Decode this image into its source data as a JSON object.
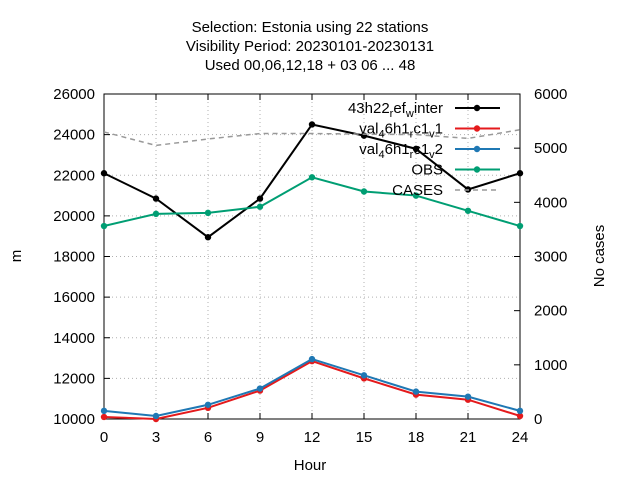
{
  "chart_data": {
    "type": "line",
    "title_lines": [
      "Selection: Estonia using    22 stations",
      "Visibility   Period: 20230101-20230131",
      "Used  00,06,12,18  + 03 06 ... 48"
    ],
    "xlabel": "Hour",
    "ylabel": "m",
    "y2label": "No cases",
    "x": [
      0,
      3,
      6,
      9,
      12,
      15,
      18,
      21,
      24
    ],
    "xticks": [
      "0",
      "3",
      "6",
      "9",
      "12",
      "15",
      "18",
      "21",
      "24"
    ],
    "xlim": [
      0,
      24
    ],
    "ylim": [
      10000,
      26000
    ],
    "yticks": [
      "10000",
      "12000",
      "14000",
      "16000",
      "18000",
      "20000",
      "22000",
      "24000",
      "26000"
    ],
    "y2lim": [
      0,
      6000
    ],
    "y2ticks": [
      "0",
      "1000",
      "2000",
      "3000",
      "4000",
      "5000",
      "6000"
    ],
    "legend_position": "top-right",
    "series": [
      {
        "name": "43h22 ref_w inter",
        "legend_parts": [
          [
            "43h22",
            ""
          ],
          [
            "r",
            "sub"
          ],
          [
            "ef",
            ""
          ],
          [
            "w",
            "sub"
          ],
          [
            "inter",
            ""
          ]
        ],
        "color": "#000000",
        "axis": "y",
        "values": [
          22100,
          20850,
          18950,
          20850,
          24500,
          23950,
          23300,
          21300,
          22100
        ]
      },
      {
        "name": "val_46h1_rc1_v1",
        "legend_parts": [
          [
            "val",
            ""
          ],
          [
            "4",
            "sub"
          ],
          [
            "6h1",
            ""
          ],
          [
            "r",
            "sub"
          ],
          [
            "c1",
            ""
          ],
          [
            "v",
            "sub"
          ],
          [
            "1",
            ""
          ]
        ],
        "color": "#e41a1c",
        "axis": "y",
        "values": [
          10100,
          10000,
          10550,
          11400,
          12850,
          12000,
          11200,
          10950,
          10150
        ]
      },
      {
        "name": "val_46h1_rc1_v2",
        "legend_parts": [
          [
            "val",
            ""
          ],
          [
            "4",
            "sub"
          ],
          [
            "6h1",
            ""
          ],
          [
            "r",
            "sub"
          ],
          [
            "c1",
            ""
          ],
          [
            "v",
            "sub"
          ],
          [
            "2",
            ""
          ]
        ],
        "color": "#1f78b4",
        "axis": "y",
        "values": [
          10400,
          10150,
          10700,
          11500,
          12950,
          12150,
          11350,
          11100,
          10400
        ]
      },
      {
        "name": "OBS",
        "legend_parts": [
          [
            "OBS",
            ""
          ]
        ],
        "color": "#009e73",
        "axis": "y",
        "values": [
          19500,
          20100,
          20150,
          20450,
          21900,
          21200,
          21000,
          20250,
          19500
        ]
      },
      {
        "name": "CASES",
        "legend_parts": [
          [
            "CASES",
            ""
          ]
        ],
        "color": "#999999",
        "axis": "y2",
        "dashed": true,
        "values": [
          5300,
          5050,
          5170,
          5270,
          5270,
          5260,
          5250,
          5180,
          5340
        ]
      }
    ]
  }
}
